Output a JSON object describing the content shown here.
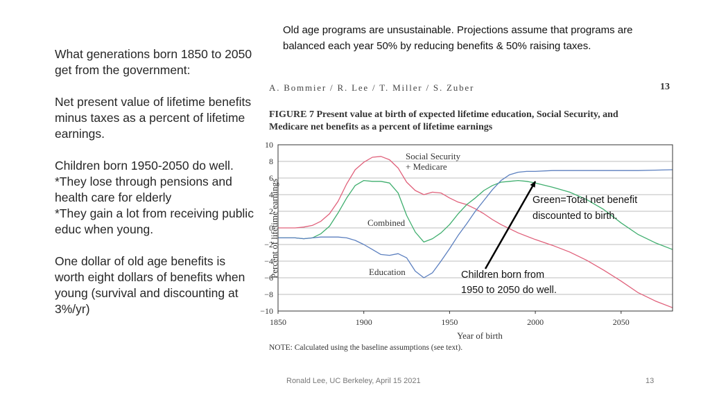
{
  "left_panel": {
    "p1": "What generations born 1850 to 2050 get from the government:",
    "p2": "Net present value of lifetime benefits minus taxes as a percent of lifetime earnings.",
    "p3_l1": "Children born 1950-2050 do well.",
    "p3_l2": "*They lose through pensions and health care for elderly",
    "p3_l3": "*They gain a lot from receiving public educ when young.",
    "p4": "One dollar of old age benefits is worth eight dollars of benefits when young (survival and discounting at 3%/yr)"
  },
  "top_note": "Old age programs are unsustainable. Projections assume that programs are balanced each year 50% by reducing benefits & 50% raising taxes.",
  "figure_header": {
    "authors": "A. Bommier / R. Lee / T. Miller / S. Zuber",
    "page": "13",
    "title": "FIGURE 7   Present value at birth of expected lifetime education, Social Security, and Medicare net benefits as a percent of lifetime earnings",
    "note": "NOTE: Calculated using the baseline assumptions (see text)."
  },
  "annotations": {
    "green_l1": "Green=Total net benefit",
    "green_l2": "discounted to birth.",
    "children_l1": "Children born from",
    "children_l2": "1950 to 2050 do well."
  },
  "footer": {
    "left": "Ronald Lee, UC Berkeley, April 15 2021",
    "right": "13"
  },
  "colors": {
    "ss": "#e0607a",
    "combined": "#3fae6e",
    "education": "#5b7fbf",
    "grid": "#bdbdbd",
    "axis": "#333333"
  },
  "chart_data": {
    "type": "line",
    "xlabel": "Year of birth",
    "ylabel": "Percent of lifetime earnings",
    "xlim": [
      1850,
      2080
    ],
    "ylim": [
      -10,
      10
    ],
    "xticks": [
      1850,
      1900,
      1950,
      2000,
      2050
    ],
    "yticks": [
      10,
      8,
      6,
      4,
      2,
      0,
      -2,
      -4,
      -6,
      -8,
      -10
    ],
    "ytick_labels": [
      "10",
      "8",
      "6",
      "4",
      "2",
      "0",
      "−2",
      "−4",
      "−6",
      "−8",
      "−10"
    ],
    "grid": true,
    "series": [
      {
        "name": "Social Security + Medicare",
        "label_l1": "Social Security",
        "label_l2": "+ Medicare",
        "color_key": "ss",
        "x": [
          1850,
          1860,
          1865,
          1870,
          1875,
          1880,
          1885,
          1890,
          1895,
          1900,
          1905,
          1910,
          1915,
          1920,
          1925,
          1930,
          1935,
          1940,
          1945,
          1950,
          1955,
          1960,
          1965,
          1970,
          1975,
          1980,
          1990,
          2000,
          2010,
          2020,
          2030,
          2040,
          2050,
          2060,
          2070,
          2080
        ],
        "y": [
          0,
          0,
          0.1,
          0.3,
          0.8,
          1.7,
          3.2,
          5.3,
          7,
          7.9,
          8.5,
          8.6,
          8.2,
          7.2,
          5.5,
          4.5,
          4,
          4.3,
          4.2,
          3.6,
          3.1,
          2.8,
          2.3,
          1.7,
          1,
          0.4,
          -0.6,
          -1.4,
          -2.1,
          -2.9,
          -3.9,
          -5.1,
          -6.4,
          -7.8,
          -8.8,
          -9.6
        ]
      },
      {
        "name": "Combined",
        "label": "Combined",
        "color_key": "combined",
        "x": [
          1850,
          1860,
          1865,
          1870,
          1875,
          1880,
          1885,
          1890,
          1895,
          1900,
          1905,
          1910,
          1915,
          1920,
          1925,
          1930,
          1935,
          1940,
          1945,
          1950,
          1955,
          1960,
          1965,
          1970,
          1975,
          1980,
          1985,
          1990,
          1995,
          2000,
          2010,
          2020,
          2030,
          2040,
          2050,
          2060,
          2070,
          2080
        ],
        "y": [
          -1.2,
          -1.2,
          -1.3,
          -1.2,
          -0.7,
          0.2,
          1.8,
          3.6,
          5.1,
          5.7,
          5.6,
          5.6,
          5.4,
          4.2,
          1.5,
          -0.5,
          -1.7,
          -1.3,
          -0.6,
          0.4,
          1.7,
          2.8,
          3.6,
          4.5,
          5.1,
          5.5,
          5.6,
          5.7,
          5.6,
          5.4,
          4.9,
          4.3,
          3.4,
          2.2,
          0.6,
          -0.8,
          -1.8,
          -2.6
        ]
      },
      {
        "name": "Education",
        "label": "Education",
        "color_key": "education",
        "x": [
          1850,
          1860,
          1865,
          1870,
          1875,
          1880,
          1885,
          1890,
          1895,
          1900,
          1905,
          1910,
          1915,
          1920,
          1925,
          1930,
          1935,
          1940,
          1945,
          1950,
          1955,
          1960,
          1965,
          1970,
          1975,
          1980,
          1985,
          1990,
          1995,
          2000,
          2010,
          2020,
          2030,
          2040,
          2050,
          2060,
          2070,
          2080
        ],
        "y": [
          -1.2,
          -1.2,
          -1.3,
          -1.2,
          -1.1,
          -1.1,
          -1.1,
          -1.2,
          -1.5,
          -2,
          -2.6,
          -3.2,
          -3.3,
          -3.1,
          -3.6,
          -5.2,
          -6,
          -5.4,
          -4,
          -2.5,
          -0.9,
          0.5,
          2,
          3.3,
          4.6,
          5.7,
          6.4,
          6.7,
          6.8,
          6.8,
          6.9,
          6.9,
          6.9,
          6.9,
          6.9,
          6.9,
          6.95,
          7
        ]
      }
    ]
  }
}
